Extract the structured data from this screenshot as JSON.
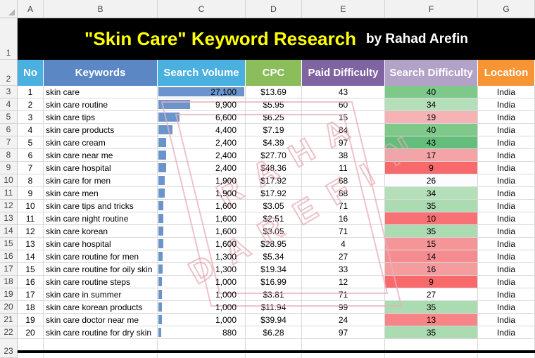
{
  "columns": [
    "A",
    "B",
    "C",
    "D",
    "E",
    "F",
    "G"
  ],
  "rows_numbers": [
    "1",
    "2",
    "3",
    "4",
    "5",
    "6",
    "7",
    "8",
    "9",
    "10",
    "11",
    "12",
    "13",
    "14",
    "15",
    "16",
    "17",
    "18",
    "19",
    "20",
    "21",
    "22",
    "23"
  ],
  "title": {
    "main": "\"Skin Care\" Keyword Research",
    "by": "by Rahad Arefin"
  },
  "headers": {
    "no": "No",
    "keywords": "Keywords",
    "search_volume": "Search Volume",
    "cpc": "CPC",
    "paid_difficulty": "Paid Difficulty",
    "search_difficulty": "Search Difficulty",
    "location": "Location"
  },
  "header_colors": {
    "no": "#4ab0e0",
    "keywords": "#5b87c4",
    "search_volume": "#4ab0e0",
    "cpc": "#8bbd5a",
    "paid_difficulty": "#8064a2",
    "search_difficulty": "#b3a2c7",
    "location": "#f79433"
  },
  "max_search_volume": 27100,
  "records": [
    {
      "no": "1",
      "keyword": "skin care",
      "volume": "27,100",
      "vol_num": 27100,
      "cpc": "$13.69",
      "paid": "43",
      "sd": "40",
      "sd_color": "#7ec98a",
      "location": "India"
    },
    {
      "no": "2",
      "keyword": "skin care routine",
      "volume": "9,900",
      "vol_num": 9900,
      "cpc": "$5.95",
      "paid": "60",
      "sd": "34",
      "sd_color": "#b5dfb9",
      "location": "India"
    },
    {
      "no": "3",
      "keyword": "skin care tips",
      "volume": "6,600",
      "vol_num": 6600,
      "cpc": "$6.25",
      "paid": "15",
      "sd": "19",
      "sd_color": "#f6b3b6",
      "location": "India"
    },
    {
      "no": "4",
      "keyword": "skin care products",
      "volume": "4,400",
      "vol_num": 4400,
      "cpc": "$7.19",
      "paid": "84",
      "sd": "40",
      "sd_color": "#7ec98a",
      "location": "India"
    },
    {
      "no": "5",
      "keyword": "skin care cream",
      "volume": "2,400",
      "vol_num": 2400,
      "cpc": "$4.39",
      "paid": "97",
      "sd": "43",
      "sd_color": "#63be7b",
      "location": "India"
    },
    {
      "no": "6",
      "keyword": "skin care near me",
      "volume": "2,400",
      "vol_num": 2400,
      "cpc": "$27.70",
      "paid": "38",
      "sd": "17",
      "sd_color": "#f4a3a6",
      "location": "India"
    },
    {
      "no": "7",
      "keyword": "skin care hospital",
      "volume": "2,400",
      "vol_num": 2400,
      "cpc": "$48.36",
      "paid": "11",
      "sd": "9",
      "sd_color": "#f8696b",
      "location": "India"
    },
    {
      "no": "8",
      "keyword": "skin care for men",
      "volume": "1,900",
      "vol_num": 1900,
      "cpc": "$17.92",
      "paid": "68",
      "sd": "26",
      "sd_color": "#fcfcff",
      "location": "India"
    },
    {
      "no": "9",
      "keyword": "skin care men",
      "volume": "1,900",
      "vol_num": 1900,
      "cpc": "$17.92",
      "paid": "68",
      "sd": "34",
      "sd_color": "#b5dfb9",
      "location": "India"
    },
    {
      "no": "10",
      "keyword": "skin care tips and tricks",
      "volume": "1,600",
      "vol_num": 1600,
      "cpc": "$3.05",
      "paid": "71",
      "sd": "35",
      "sd_color": "#abdbb1",
      "location": "India"
    },
    {
      "no": "11",
      "keyword": "skin care night routine",
      "volume": "1,600",
      "vol_num": 1600,
      "cpc": "$2.51",
      "paid": "16",
      "sd": "10",
      "sd_color": "#f87275",
      "location": "India"
    },
    {
      "no": "12",
      "keyword": "skin care korean",
      "volume": "1,600",
      "vol_num": 1600,
      "cpc": "$3.05",
      "paid": "71",
      "sd": "35",
      "sd_color": "#abdbb1",
      "location": "India"
    },
    {
      "no": "13",
      "keyword": "skin care hospital",
      "volume": "1,600",
      "vol_num": 1600,
      "cpc": "$28.95",
      "paid": "4",
      "sd": "15",
      "sd_color": "#f59598",
      "location": "India"
    },
    {
      "no": "14",
      "keyword": "skin care routine for men",
      "volume": "1,300",
      "vol_num": 1300,
      "cpc": "$5.34",
      "paid": "27",
      "sd": "14",
      "sd_color": "#f58d90",
      "location": "India"
    },
    {
      "no": "15",
      "keyword": "skin care routine for oily skin",
      "volume": "1,300",
      "vol_num": 1300,
      "cpc": "$19.34",
      "paid": "33",
      "sd": "16",
      "sd_color": "#f59c9f",
      "location": "India"
    },
    {
      "no": "16",
      "keyword": "skin care routine steps",
      "volume": "1,000",
      "vol_num": 1000,
      "cpc": "$16.99",
      "paid": "12",
      "sd": "9",
      "sd_color": "#f8696b",
      "location": "India"
    },
    {
      "no": "17",
      "keyword": "skin care in summer",
      "volume": "1,000",
      "vol_num": 1000,
      "cpc": "$3.81",
      "paid": "71",
      "sd": "27",
      "sd_color": "#ffffff",
      "location": "India"
    },
    {
      "no": "18",
      "keyword": "skin care korean products",
      "volume": "1,000",
      "vol_num": 1000,
      "cpc": "$11.94",
      "paid": "99",
      "sd": "35",
      "sd_color": "#abdbb1",
      "location": "India"
    },
    {
      "no": "19",
      "keyword": "skin care doctor near me",
      "volume": "1,000",
      "vol_num": 1000,
      "cpc": "$39.94",
      "paid": "24",
      "sd": "13",
      "sd_color": "#f78487",
      "location": "India"
    },
    {
      "no": "20",
      "keyword": "skin care routine for dry skin",
      "volume": "880",
      "vol_num": 880,
      "cpc": "$6.28",
      "paid": "97",
      "sd": "35",
      "sd_color": "#abdbb1",
      "location": "India"
    }
  ],
  "watermark_letters": [
    "R",
    "A",
    "H",
    "A",
    "D",
    "A",
    "R",
    "E",
    "F",
    "I",
    "N"
  ]
}
